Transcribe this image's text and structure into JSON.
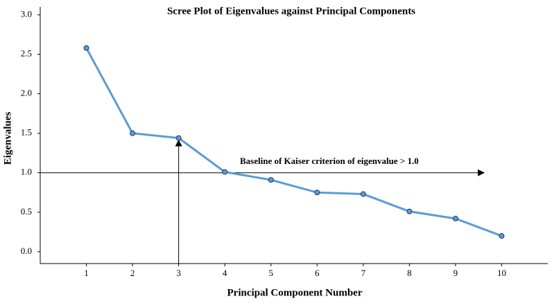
{
  "chart_data": {
    "type": "line",
    "title": "Scree Plot of Eigenvalues against Principal Components",
    "x_label": "Principal Component Number",
    "y_label": "Eigenvalues",
    "annotation": "Baseline of Kaiser criterion of eigenvalue > 1.0",
    "x": [
      1,
      2,
      3,
      4,
      5,
      6,
      7,
      8,
      9,
      10
    ],
    "series": [
      {
        "name": "Eigenvalue",
        "color": "#5b9bd5",
        "values": [
          2.58,
          1.5,
          1.44,
          1.01,
          0.91,
          0.75,
          0.73,
          0.51,
          0.42,
          0.2
        ]
      }
    ],
    "xlim": [
      0,
      11
    ],
    "xticks": [
      1,
      2,
      3,
      4,
      5,
      6,
      7,
      8,
      9,
      10
    ],
    "ylim": [
      -0.15,
      3.1
    ],
    "yticks": [
      {
        "value": 0,
        "label": "0.0"
      },
      {
        "value": 0.5,
        "label": "0.5"
      },
      {
        "value": 1,
        "label": "1.0"
      },
      {
        "value": 1.5,
        "label": "1.5"
      },
      {
        "value": 2,
        "label": "2.0"
      },
      {
        "value": 2.5,
        "label": "2.5"
      },
      {
        "value": 3,
        "label": "3.0"
      }
    ]
  }
}
